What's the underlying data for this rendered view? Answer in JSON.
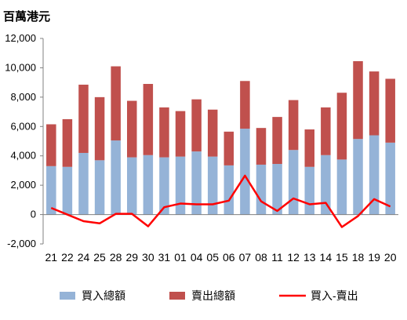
{
  "chart_data": {
    "type": "bar",
    "stacked": true,
    "title": "",
    "unit_label": "百萬港元",
    "xlabel": "",
    "ylabel": "",
    "ylim": [
      -2000,
      12000
    ],
    "ytick_values": [
      -2000,
      0,
      2000,
      4000,
      6000,
      8000,
      10000,
      12000
    ],
    "ytick_labels": [
      "-2,000",
      "0",
      "2,000",
      "4,000",
      "6,000",
      "8,000",
      "10,000",
      "12,000"
    ],
    "grid": false,
    "legend_position": "bottom",
    "categories": [
      "21",
      "22",
      "24",
      "25",
      "28",
      "29",
      "30",
      "31",
      "01",
      "04",
      "05",
      "06",
      "07",
      "08",
      "11",
      "12",
      "13",
      "14",
      "15",
      "18",
      "19",
      "20"
    ],
    "series": [
      {
        "name": "買入總額",
        "type": "bar",
        "color": "#95b3d7",
        "values": [
          3300,
          3250,
          4200,
          3700,
          5050,
          3900,
          4050,
          3900,
          3950,
          4300,
          3950,
          3350,
          5850,
          3400,
          3450,
          4400,
          3250,
          4050,
          3750,
          5150,
          5400,
          4900
        ]
      },
      {
        "name": "賣出總額",
        "type": "bar",
        "color": "#c0504d",
        "values": [
          2850,
          3250,
          4650,
          4300,
          5050,
          3850,
          4850,
          3400,
          3100,
          3550,
          3200,
          2300,
          3250,
          2500,
          3200,
          3400,
          2550,
          3250,
          4550,
          5300,
          4350,
          4350
        ]
      },
      {
        "name": "買入-賣出",
        "type": "line",
        "color": "#ff0000",
        "values": [
          450,
          0,
          -450,
          -600,
          50,
          50,
          -800,
          500,
          750,
          700,
          700,
          950,
          2650,
          900,
          250,
          1100,
          700,
          800,
          -850,
          -100,
          1050,
          550
        ]
      }
    ]
  }
}
